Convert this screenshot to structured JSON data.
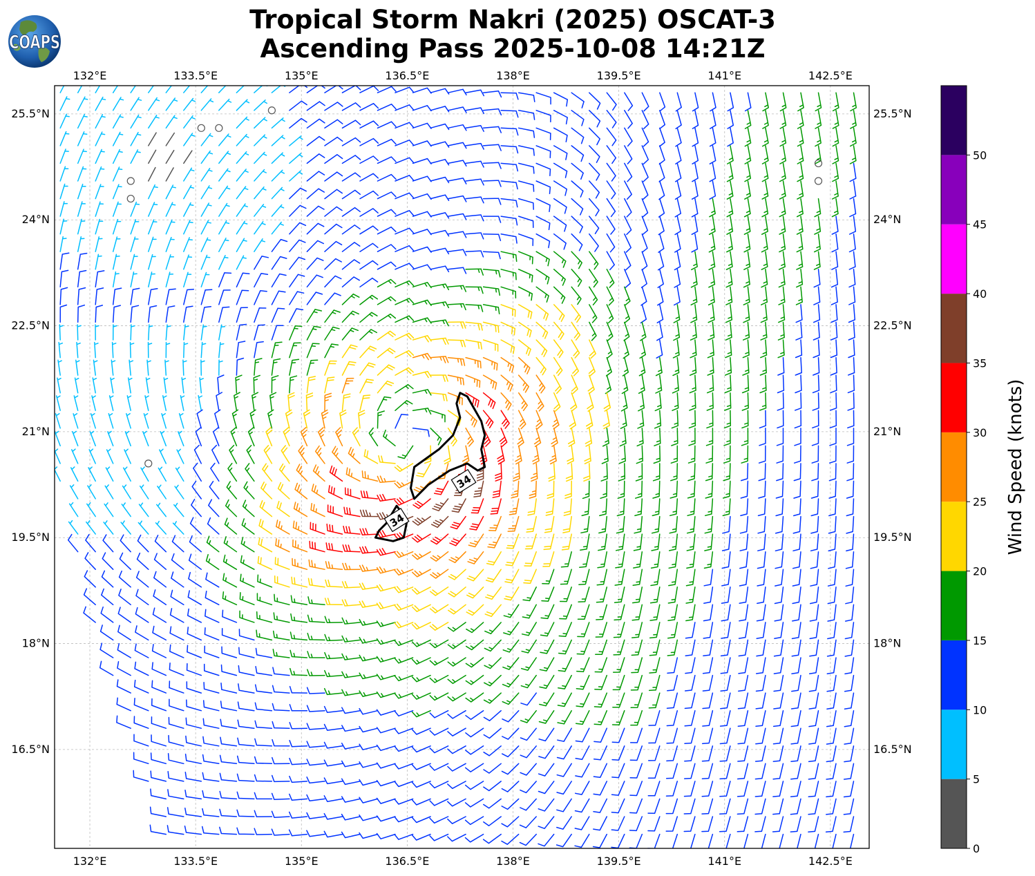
{
  "header": {
    "logo_text": "COAPS",
    "title_line1": "Tropical Storm Nakri (2025) OSCAT-3",
    "title_line2": "Ascending Pass 2025-10-08 14:21Z"
  },
  "chart_data": {
    "type": "wind-barbs",
    "title": "Tropical Storm Nakri (2025) OSCAT-3 Ascending Pass 2025-10-08 14:21Z",
    "xlabel": "",
    "ylabel": "",
    "xlim": [
      131.5,
      143.05
    ],
    "ylim": [
      15.1,
      25.9
    ],
    "x_ticks": [
      132,
      133.5,
      135,
      136.5,
      138,
      139.5,
      141,
      142.5
    ],
    "x_tick_labels": [
      "132°E",
      "133.5°E",
      "135°E",
      "136.5°E",
      "138°E",
      "139.5°E",
      "141°E",
      "142.5°E"
    ],
    "y_ticks": [
      16.5,
      18,
      19.5,
      21,
      22.5,
      24,
      25.5
    ],
    "y_tick_labels": [
      "16.5°N",
      "18°N",
      "19.5°N",
      "21°N",
      "22.5°N",
      "24°N",
      "25.5°N"
    ],
    "grid": true,
    "storm_center": {
      "lon": 136.5,
      "lat": 20.9
    },
    "contour": {
      "level": 34,
      "label": "34",
      "north_polygon": [
        [
          137.25,
          21.55
        ],
        [
          137.35,
          21.5
        ],
        [
          137.55,
          21.15
        ],
        [
          137.6,
          20.95
        ],
        [
          137.55,
          20.75
        ],
        [
          137.6,
          20.5
        ],
        [
          137.5,
          20.45
        ],
        [
          137.35,
          20.55
        ],
        [
          137.1,
          20.45
        ],
        [
          136.8,
          20.25
        ],
        [
          136.6,
          20.05
        ],
        [
          136.55,
          20.2
        ],
        [
          136.6,
          20.5
        ],
        [
          136.95,
          20.75
        ],
        [
          137.15,
          20.95
        ],
        [
          137.25,
          21.2
        ],
        [
          137.2,
          21.4
        ]
      ],
      "south_polygon": [
        [
          136.35,
          19.95
        ],
        [
          136.5,
          19.75
        ],
        [
          136.45,
          19.5
        ],
        [
          136.3,
          19.45
        ],
        [
          136.05,
          19.5
        ],
        [
          136.1,
          19.6
        ],
        [
          136.2,
          19.7
        ]
      ],
      "label_positions": [
        [
          137.3,
          20.3
        ],
        [
          136.35,
          19.75
        ]
      ]
    },
    "colorbar": {
      "label": "Wind Speed (knots)",
      "tick_values": [
        0,
        5,
        10,
        15,
        20,
        25,
        30,
        35,
        40,
        45,
        50
      ],
      "tick_labels": [
        "0",
        "5",
        "10",
        "15",
        "20",
        "25",
        "30",
        "35",
        "40",
        "45",
        "50"
      ],
      "bins": [
        {
          "min": 0,
          "max": 5,
          "color": "#555555"
        },
        {
          "min": 5,
          "max": 10,
          "color": "#00bfff"
        },
        {
          "min": 10,
          "max": 15,
          "color": "#0033ff"
        },
        {
          "min": 15,
          "max": 20,
          "color": "#009900"
        },
        {
          "min": 20,
          "max": 25,
          "color": "#ffd700"
        },
        {
          "min": 25,
          "max": 30,
          "color": "#ff8c00"
        },
        {
          "min": 30,
          "max": 35,
          "color": "#ff0000"
        },
        {
          "min": 35,
          "max": 40,
          "color": "#7f3f2a"
        },
        {
          "min": 40,
          "max": 45,
          "color": "#ff00ff"
        },
        {
          "min": 45,
          "max": 50,
          "color": "#8800bb"
        },
        {
          "min": 50,
          "max": 55,
          "color": "#2b0060"
        }
      ]
    },
    "field_model": {
      "description_values": "Cyclonic wind field; speeds in knots",
      "center_lon": 136.5,
      "center_lat": 20.9,
      "grid_step_deg": 0.25,
      "swath_west_edge": [
        [
          131.5,
          25.9
        ],
        [
          131.5,
          20.5
        ],
        [
          131.85,
          19.0
        ],
        [
          132.3,
          17.5
        ],
        [
          132.7,
          16.5
        ],
        [
          133.1,
          15.1
        ]
      ],
      "calm_patches": [
        [
          132.6,
          24.4
        ],
        [
          133.7,
          25.4
        ],
        [
          134.6,
          25.6
        ],
        [
          132.8,
          20.5
        ],
        [
          142.3,
          24.7
        ]
      ],
      "wind_speed_range_kt": [
        0,
        38
      ]
    }
  }
}
